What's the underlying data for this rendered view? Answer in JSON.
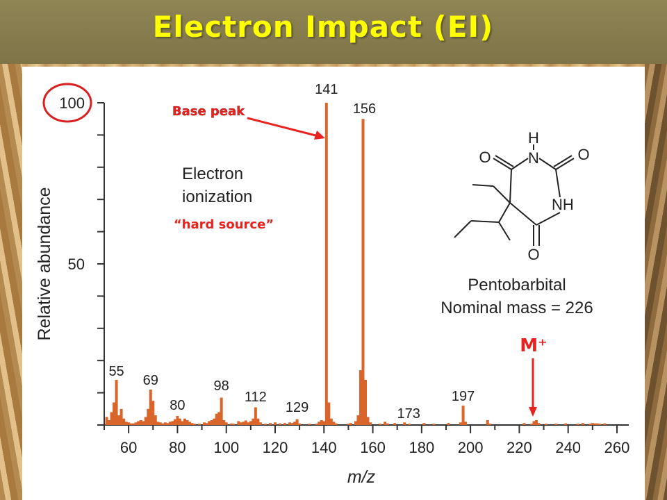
{
  "slide": {
    "title": "Electron Impact (EI)"
  },
  "chart_data": {
    "type": "bar",
    "xlabel": "m/z",
    "ylabel": "Relative abundance",
    "xlim": [
      50,
      262
    ],
    "ylim": [
      0,
      100
    ],
    "x_ticks": [
      "60",
      "80",
      "100",
      "120",
      "140",
      "160",
      "180",
      "200",
      "220",
      "240",
      "260"
    ],
    "y_tick_labels": [
      "100",
      "50"
    ],
    "bars": [
      {
        "x": 51,
        "y": 2.5
      },
      {
        "x": 52,
        "y": 1.5
      },
      {
        "x": 53,
        "y": 4
      },
      {
        "x": 54,
        "y": 7
      },
      {
        "x": 55,
        "y": 14
      },
      {
        "x": 56,
        "y": 3
      },
      {
        "x": 57,
        "y": 5
      },
      {
        "x": 58,
        "y": 2
      },
      {
        "x": 59,
        "y": 1
      },
      {
        "x": 60,
        "y": 0.8
      },
      {
        "x": 61,
        "y": 0.5
      },
      {
        "x": 62,
        "y": 0.5
      },
      {
        "x": 63,
        "y": 0.8
      },
      {
        "x": 64,
        "y": 1.2
      },
      {
        "x": 65,
        "y": 1.5
      },
      {
        "x": 66,
        "y": 1.2
      },
      {
        "x": 67,
        "y": 2.5
      },
      {
        "x": 68,
        "y": 5
      },
      {
        "x": 69,
        "y": 11
      },
      {
        "x": 70,
        "y": 7.5
      },
      {
        "x": 71,
        "y": 3
      },
      {
        "x": 72,
        "y": 1
      },
      {
        "x": 73,
        "y": 0.8
      },
      {
        "x": 74,
        "y": 0.5
      },
      {
        "x": 75,
        "y": 0.8
      },
      {
        "x": 76,
        "y": 0.6
      },
      {
        "x": 77,
        "y": 1
      },
      {
        "x": 78,
        "y": 1.2
      },
      {
        "x": 79,
        "y": 1.8
      },
      {
        "x": 80,
        "y": 2.8
      },
      {
        "x": 81,
        "y": 2
      },
      {
        "x": 82,
        "y": 1.2
      },
      {
        "x": 83,
        "y": 2
      },
      {
        "x": 84,
        "y": 1.5
      },
      {
        "x": 85,
        "y": 1
      },
      {
        "x": 86,
        "y": 0.6
      },
      {
        "x": 87,
        "y": 0.4
      },
      {
        "x": 89,
        "y": 0.4
      },
      {
        "x": 91,
        "y": 0.8
      },
      {
        "x": 92,
        "y": 0.6
      },
      {
        "x": 93,
        "y": 1.2
      },
      {
        "x": 94,
        "y": 1.5
      },
      {
        "x": 95,
        "y": 2
      },
      {
        "x": 96,
        "y": 3.5
      },
      {
        "x": 97,
        "y": 4
      },
      {
        "x": 98,
        "y": 8.5
      },
      {
        "x": 99,
        "y": 1.5
      },
      {
        "x": 100,
        "y": 0.8
      },
      {
        "x": 102,
        "y": 0.5
      },
      {
        "x": 103,
        "y": 0.4
      },
      {
        "x": 105,
        "y": 1.2
      },
      {
        "x": 106,
        "y": 0.8
      },
      {
        "x": 107,
        "y": 1
      },
      {
        "x": 108,
        "y": 1.4
      },
      {
        "x": 109,
        "y": 0.8
      },
      {
        "x": 110,
        "y": 1.2
      },
      {
        "x": 111,
        "y": 2
      },
      {
        "x": 112,
        "y": 5.5
      },
      {
        "x": 113,
        "y": 2
      },
      {
        "x": 114,
        "y": 0.8
      },
      {
        "x": 116,
        "y": 0.4
      },
      {
        "x": 118,
        "y": 0.6
      },
      {
        "x": 120,
        "y": 0.8
      },
      {
        "x": 122,
        "y": 0.5
      },
      {
        "x": 124,
        "y": 0.6
      },
      {
        "x": 126,
        "y": 0.8
      },
      {
        "x": 127,
        "y": 0.6
      },
      {
        "x": 128,
        "y": 1
      },
      {
        "x": 129,
        "y": 1.8
      },
      {
        "x": 130,
        "y": 0.5
      },
      {
        "x": 134,
        "y": 0.4
      },
      {
        "x": 137,
        "y": 0.4
      },
      {
        "x": 138,
        "y": 1
      },
      {
        "x": 139,
        "y": 1.5
      },
      {
        "x": 140,
        "y": 1.2
      },
      {
        "x": 141,
        "y": 100
      },
      {
        "x": 142,
        "y": 7
      },
      {
        "x": 143,
        "y": 2
      },
      {
        "x": 144,
        "y": 1
      },
      {
        "x": 145,
        "y": 0.5
      },
      {
        "x": 150,
        "y": 0.4
      },
      {
        "x": 151,
        "y": 0.6
      },
      {
        "x": 153,
        "y": 1.2
      },
      {
        "x": 154,
        "y": 3
      },
      {
        "x": 155,
        "y": 17
      },
      {
        "x": 156,
        "y": 95
      },
      {
        "x": 157,
        "y": 14
      },
      {
        "x": 158,
        "y": 2.5
      },
      {
        "x": 159,
        "y": 0.8
      },
      {
        "x": 163,
        "y": 0.4
      },
      {
        "x": 165,
        "y": 1
      },
      {
        "x": 166,
        "y": 0.5
      },
      {
        "x": 169,
        "y": 0.6
      },
      {
        "x": 173,
        "y": 0.8
      },
      {
        "x": 175,
        "y": 0.4
      },
      {
        "x": 181,
        "y": 0.6
      },
      {
        "x": 185,
        "y": 0.4
      },
      {
        "x": 191,
        "y": 0.6
      },
      {
        "x": 196,
        "y": 0.8
      },
      {
        "x": 197,
        "y": 6
      },
      {
        "x": 198,
        "y": 1
      },
      {
        "x": 207,
        "y": 1.5
      },
      {
        "x": 208,
        "y": 0.4
      },
      {
        "x": 222,
        "y": 0.6
      },
      {
        "x": 225,
        "y": 0.4
      },
      {
        "x": 226,
        "y": 1.2
      },
      {
        "x": 227,
        "y": 1.5
      },
      {
        "x": 228,
        "y": 0.6
      },
      {
        "x": 231,
        "y": 0.4
      },
      {
        "x": 235,
        "y": 0.4
      },
      {
        "x": 239,
        "y": 0.5
      },
      {
        "x": 244,
        "y": 0.4
      },
      {
        "x": 246,
        "y": 0.6
      },
      {
        "x": 249,
        "y": 0.4
      },
      {
        "x": 250,
        "y": 0.6
      },
      {
        "x": 251,
        "y": 0.5
      },
      {
        "x": 252,
        "y": 0.5
      },
      {
        "x": 253,
        "y": 0.4
      },
      {
        "x": 255,
        "y": 0.5
      }
    ],
    "peak_labels": [
      {
        "x": 55,
        "text": "55"
      },
      {
        "x": 69,
        "text": "69"
      },
      {
        "x": 80,
        "text": "80"
      },
      {
        "x": 98,
        "text": "98"
      },
      {
        "x": 112,
        "text": "112"
      },
      {
        "x": 129,
        "text": "129"
      },
      {
        "x": 141,
        "text": "141"
      },
      {
        "x": 156,
        "text": "156"
      },
      {
        "x": 173,
        "text": "173"
      },
      {
        "x": 197,
        "text": "197"
      }
    ],
    "annotations": {
      "base_peak": "Base peak",
      "electron": "Electron",
      "ionization": "ionization",
      "hard_source": "“hard source”",
      "molecular_ion": "M⁺",
      "compound_name": "Pentobarbital",
      "nominal_mass": "Nominal mass = 226"
    },
    "molecule_atoms": [
      "H",
      "N",
      "O",
      "O",
      "NH",
      "O"
    ],
    "colors": {
      "bar": "#d9652a",
      "annotation": "#e8221f",
      "axis": "#333333",
      "circle": "#d92020"
    }
  }
}
